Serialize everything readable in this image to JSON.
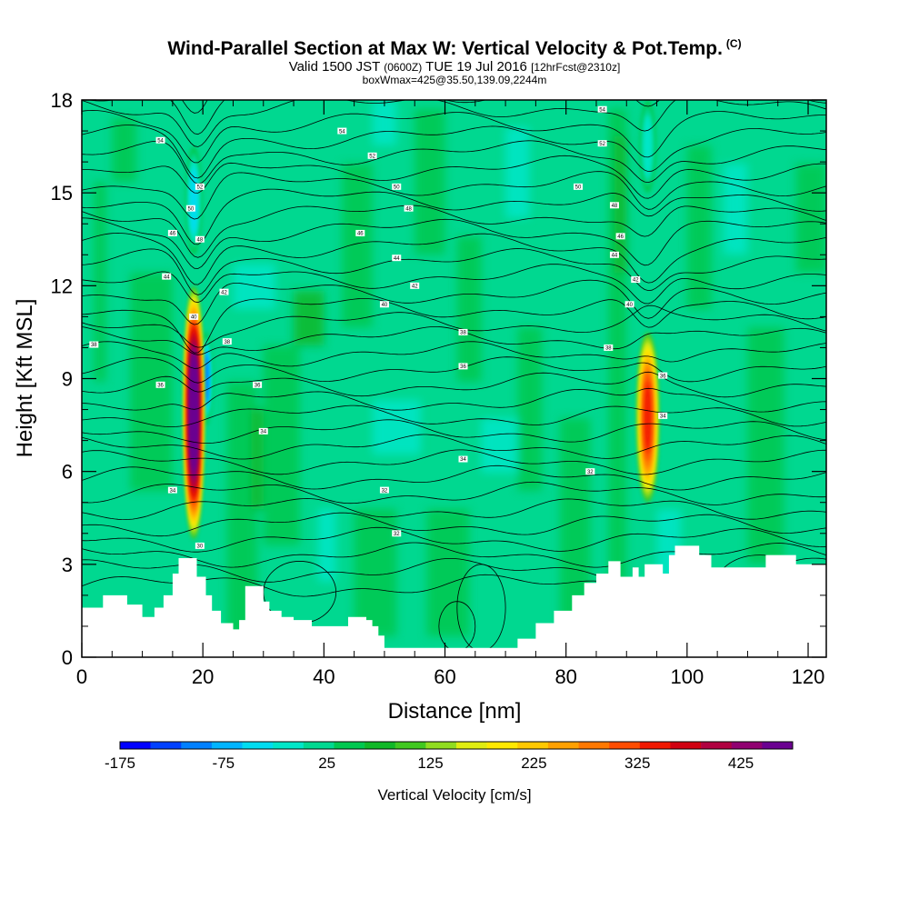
{
  "title": {
    "main": "Wind-Parallel Section at Max W: Vertical Velocity & Pot.Temp.",
    "copyright": "(C)",
    "valid_prefix": "Valid 1500 JST",
    "valid_utc": "(0600Z)",
    "valid_date": "TUE 19 Jul 2016",
    "forecast": "[12hrFcst@2310z]",
    "box": "boxWmax=425@35.50,139.09,2244m"
  },
  "chart_data": {
    "type": "heatmap",
    "xlabel": "Distance [nm]",
    "ylabel": "Height [Kft MSL]",
    "xlim": [
      0,
      123
    ],
    "ylim": [
      0,
      18
    ],
    "x_ticks": [
      "0",
      "20",
      "40",
      "60",
      "80",
      "100",
      "120"
    ],
    "y_ticks": [
      "0",
      "3",
      "6",
      "9",
      "12",
      "15",
      "18"
    ],
    "colorbar": {
      "title": "Vertical Velocity [cm/s]",
      "min": -175,
      "max": 475,
      "step": 25,
      "tick_labels": [
        "-175",
        "-75",
        "25",
        "125",
        "225",
        "325",
        "425"
      ],
      "colors": [
        "#0000ff",
        "#0040ff",
        "#0080ff",
        "#00b4ff",
        "#00dcf0",
        "#00e6c8",
        "#00d890",
        "#00c850",
        "#10b828",
        "#40c820",
        "#90dc20",
        "#e0ec10",
        "#ffe800",
        "#ffc800",
        "#ffa000",
        "#ff7800",
        "#ff4c00",
        "#f01800",
        "#d00010",
        "#b00040",
        "#900070",
        "#6a0090"
      ]
    },
    "updrafts": [
      {
        "x": 18.5,
        "y_range": [
          3.8,
          12.0
        ],
        "w_max": 425
      },
      {
        "x": 93.5,
        "y_range": [
          5.0,
          10.5
        ],
        "w_max": 250
      }
    ],
    "downdrafts": [
      {
        "x": 20.5,
        "y_range": [
          7.5,
          10.5
        ],
        "w_min": -175
      },
      {
        "x": 18.5,
        "y_range": [
          13.0,
          16.5
        ],
        "w_min": -125
      },
      {
        "x": 93.5,
        "y_range": [
          15.0,
          18.0
        ],
        "w_min": -100
      }
    ],
    "terrain": [
      [
        0,
        1.6
      ],
      [
        3.5,
        1.6
      ],
      [
        3.5,
        2.0
      ],
      [
        7.5,
        2.0
      ],
      [
        7.5,
        1.7
      ],
      [
        10,
        1.7
      ],
      [
        10,
        1.3
      ],
      [
        12,
        1.3
      ],
      [
        12,
        1.6
      ],
      [
        13.5,
        1.6
      ],
      [
        13.5,
        2.0
      ],
      [
        15,
        2.0
      ],
      [
        15,
        2.7
      ],
      [
        16,
        2.7
      ],
      [
        16,
        3.2
      ],
      [
        19,
        3.2
      ],
      [
        19,
        2.6
      ],
      [
        20.5,
        2.6
      ],
      [
        20.5,
        2.0
      ],
      [
        21.5,
        2.0
      ],
      [
        21.5,
        1.5
      ],
      [
        23,
        1.5
      ],
      [
        23,
        1.1
      ],
      [
        25,
        1.1
      ],
      [
        25,
        0.9
      ],
      [
        26,
        0.9
      ],
      [
        26,
        1.2
      ],
      [
        27,
        1.2
      ],
      [
        27,
        2.3
      ],
      [
        30,
        2.3
      ],
      [
        30,
        1.8
      ],
      [
        31,
        1.8
      ],
      [
        31,
        1.5
      ],
      [
        33,
        1.5
      ],
      [
        33,
        1.3
      ],
      [
        35,
        1.3
      ],
      [
        35,
        1.2
      ],
      [
        38,
        1.2
      ],
      [
        38,
        1.0
      ],
      [
        44,
        1.0
      ],
      [
        44,
        1.3
      ],
      [
        47,
        1.3
      ],
      [
        47,
        1.2
      ],
      [
        48,
        1.2
      ],
      [
        48,
        1.0
      ],
      [
        49,
        1.0
      ],
      [
        49,
        0.7
      ],
      [
        50,
        0.7
      ],
      [
        50,
        0.3
      ],
      [
        72,
        0.3
      ],
      [
        72,
        0.6
      ],
      [
        75,
        0.6
      ],
      [
        75,
        1.1
      ],
      [
        78,
        1.1
      ],
      [
        78,
        1.5
      ],
      [
        81,
        1.5
      ],
      [
        81,
        2.0
      ],
      [
        83,
        2.0
      ],
      [
        83,
        2.4
      ],
      [
        85,
        2.4
      ],
      [
        85,
        2.7
      ],
      [
        87,
        2.7
      ],
      [
        87,
        3.1
      ],
      [
        89,
        3.1
      ],
      [
        89,
        2.6
      ],
      [
        91,
        2.6
      ],
      [
        91,
        2.9
      ],
      [
        92,
        2.9
      ],
      [
        92,
        2.6
      ],
      [
        93,
        2.6
      ],
      [
        93,
        3.0
      ],
      [
        96,
        3.0
      ],
      [
        96,
        2.7
      ],
      [
        97,
        2.7
      ],
      [
        97,
        3.3
      ],
      [
        98,
        3.3
      ],
      [
        98,
        3.6
      ],
      [
        102,
        3.6
      ],
      [
        102,
        3.3
      ],
      [
        104,
        3.3
      ],
      [
        104,
        2.9
      ],
      [
        113,
        2.9
      ],
      [
        113,
        3.3
      ],
      [
        118,
        3.3
      ],
      [
        118,
        3.0
      ],
      [
        123,
        3.0
      ]
    ],
    "isentropes": [
      {
        "label": "30",
        "x": 19.5,
        "y": 3.6
      },
      {
        "label": "32",
        "x": 52,
        "y": 4.0
      },
      {
        "label": "32",
        "x": 50,
        "y": 5.4
      },
      {
        "label": "32",
        "x": 84,
        "y": 6.0
      },
      {
        "label": "34",
        "x": 15,
        "y": 5.4
      },
      {
        "label": "34",
        "x": 30,
        "y": 7.3
      },
      {
        "label": "34",
        "x": 63,
        "y": 6.4
      },
      {
        "label": "34",
        "x": 96,
        "y": 7.8
      },
      {
        "label": "36",
        "x": 13,
        "y": 8.8
      },
      {
        "label": "36",
        "x": 29,
        "y": 8.8
      },
      {
        "label": "36",
        "x": 63,
        "y": 9.4
      },
      {
        "label": "36",
        "x": 96,
        "y": 9.1
      },
      {
        "label": "38",
        "x": 2,
        "y": 10.1
      },
      {
        "label": "38",
        "x": 24,
        "y": 10.2
      },
      {
        "label": "38",
        "x": 63,
        "y": 10.5
      },
      {
        "label": "38",
        "x": 87,
        "y": 10.0
      },
      {
        "label": "40",
        "x": 18.5,
        "y": 11.0
      },
      {
        "label": "40",
        "x": 50,
        "y": 11.4
      },
      {
        "label": "40",
        "x": 90.5,
        "y": 11.4
      },
      {
        "label": "42",
        "x": 23.5,
        "y": 11.8
      },
      {
        "label": "42",
        "x": 55,
        "y": 12.0
      },
      {
        "label": "42",
        "x": 91.5,
        "y": 12.2
      },
      {
        "label": "44",
        "x": 14,
        "y": 12.3
      },
      {
        "label": "44",
        "x": 52,
        "y": 12.9
      },
      {
        "label": "44",
        "x": 88,
        "y": 13.0
      },
      {
        "label": "46",
        "x": 15,
        "y": 13.7
      },
      {
        "label": "46",
        "x": 46,
        "y": 13.7
      },
      {
        "label": "46",
        "x": 89,
        "y": 13.6
      },
      {
        "label": "48",
        "x": 19.5,
        "y": 13.5
      },
      {
        "label": "48",
        "x": 54,
        "y": 14.5
      },
      {
        "label": "48",
        "x": 88,
        "y": 14.6
      },
      {
        "label": "50",
        "x": 18,
        "y": 14.5
      },
      {
        "label": "50",
        "x": 52,
        "y": 15.2
      },
      {
        "label": "50",
        "x": 82,
        "y": 15.2
      },
      {
        "label": "52",
        "x": 19.5,
        "y": 15.2
      },
      {
        "label": "52",
        "x": 48,
        "y": 16.2
      },
      {
        "label": "52",
        "x": 86,
        "y": 16.6
      },
      {
        "label": "54",
        "x": 13,
        "y": 16.7
      },
      {
        "label": "54",
        "x": 43,
        "y": 17.0
      },
      {
        "label": "54",
        "x": 86,
        "y": 17.7
      }
    ]
  }
}
